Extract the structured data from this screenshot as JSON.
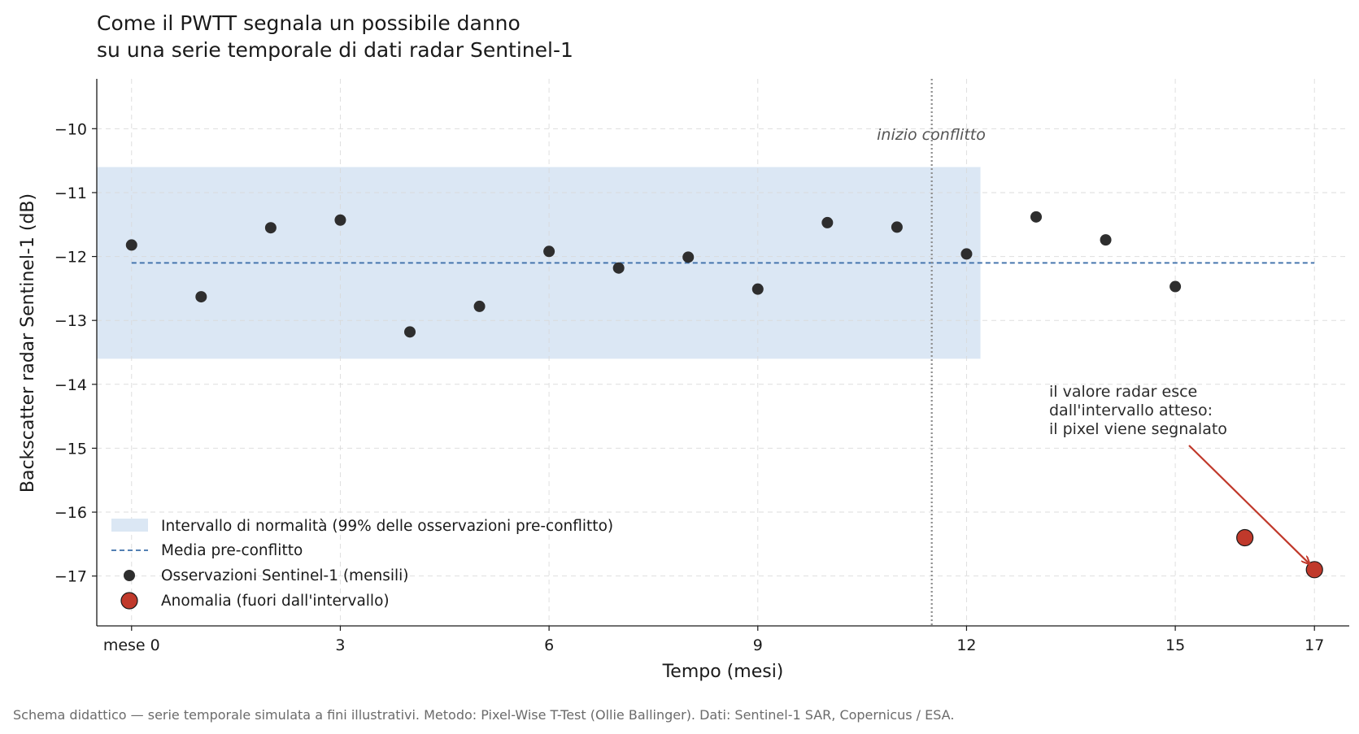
{
  "chart_data": {
    "type": "scatter",
    "title": [
      "Come il PWTT segnala un possibile danno",
      "su una serie temporale di dati radar Sentinel-1"
    ],
    "xlabel": "Tempo (mesi)",
    "ylabel": "Backscatter radar Sentinel-1 (dB)",
    "xlim": [
      -0.5,
      17.5
    ],
    "ylim": [
      -17.78,
      -9.22
    ],
    "x_ticks": [
      0,
      3,
      6,
      9,
      12,
      15,
      17
    ],
    "x_tick_labels": [
      "mese 0",
      "3",
      "6",
      "9",
      "12",
      "15",
      "17"
    ],
    "y_ticks": [
      -10,
      -11,
      -12,
      -13,
      -14,
      -15,
      -16,
      -17
    ],
    "y_tick_labels": [
      "−10",
      "−11",
      "−12",
      "−13",
      "−14",
      "−15",
      "−16",
      "−17"
    ],
    "grid": true,
    "normal_band": {
      "x_range": [
        -0.5,
        12.2
      ],
      "y_range": [
        -13.6,
        -10.6
      ],
      "color": "#dbe7f4",
      "legend": "Intervallo di normalità (99% delle osservazioni pre-conflitto)"
    },
    "mean_line": {
      "value": -12.1,
      "x_range": [
        0,
        17
      ],
      "color": "#3d6faa",
      "legend": "Media pre-conflitto"
    },
    "event_line": {
      "x": 11.5,
      "label": "inizio conflitto"
    },
    "series": [
      {
        "name": "Osservazioni Sentinel-1 (mensili)",
        "color": "#2e2e2e",
        "x": [
          0,
          1,
          2,
          3,
          4,
          5,
          6,
          7,
          8,
          9,
          10,
          11,
          12,
          13,
          14,
          15
        ],
        "values": [
          -11.82,
          -12.63,
          -11.55,
          -11.43,
          -13.18,
          -12.78,
          -11.92,
          -12.18,
          -12.01,
          -12.51,
          -11.47,
          -11.54,
          -11.96,
          -11.38,
          -11.74,
          -12.47
        ]
      },
      {
        "name": "Anomalia (fuori dall'intervallo)",
        "color": "#c0392b",
        "x": [
          16,
          17
        ],
        "values": [
          -16.4,
          -16.9
        ]
      }
    ],
    "annotation": {
      "lines": [
        "il valore radar esce",
        "dall'intervallo atteso:",
        "il pixel viene segnalato"
      ],
      "target": [
        17,
        -16.9
      ],
      "arrow_color": "#c0392b"
    },
    "legend_position": "lower-left"
  },
  "footnote": "Schema didattico — serie temporale simulata a fini illustrativi.  Metodo: Pixel-Wise T-Test (Ollie Ballinger).  Dati: Sentinel-1 SAR, Copernicus / ESA."
}
